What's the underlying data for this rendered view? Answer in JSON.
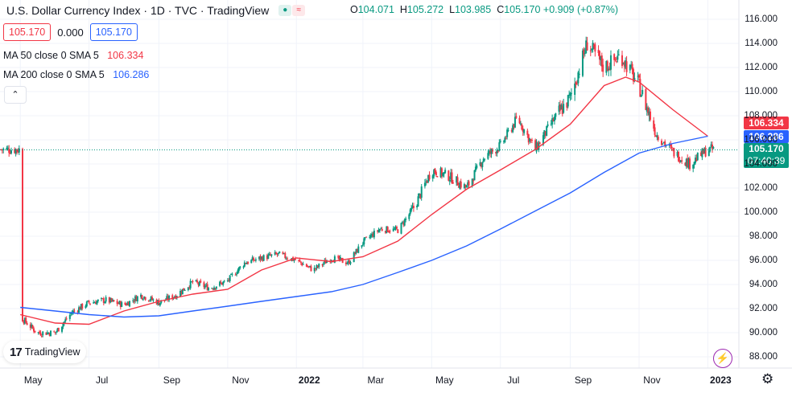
{
  "header": {
    "title": "U.S. Dollar Currency Index · 1D · TVC · TradingView",
    "ohlc": [
      {
        "label": "O",
        "value": "104.071"
      },
      {
        "label": "H",
        "value": "105.272"
      },
      {
        "label": "L",
        "value": "103.985"
      },
      {
        "label": "C",
        "value": "105.170"
      }
    ],
    "change": "+0.909 (+0.87%)",
    "last_price": "105.170",
    "volume": "0.000",
    "last_price_2": "105.170"
  },
  "indicators": {
    "ma50": {
      "label": "MA 50 close 0 SMA 5",
      "value": "106.334",
      "color": "#f23645"
    },
    "ma200": {
      "label": "MA 200 close 0 SMA 5",
      "value": "106.286",
      "color": "#2962ff"
    }
  },
  "price_tags": {
    "ma50": "106.334",
    "ma200": "106.286",
    "last": "105.170",
    "countdown": "07:40:39"
  },
  "logo_text": "TradingView",
  "collapse_glyph": "⌃",
  "colors": {
    "up": "#089981",
    "down": "#f23645",
    "ma50": "#f23645",
    "ma200": "#2962ff",
    "last_line": "#089981"
  },
  "chart_data": {
    "type": "candlestick",
    "title": "U.S. Dollar Currency Index",
    "ylim": [
      87,
      117
    ],
    "y_ticks": [
      "116.000",
      "114.000",
      "112.000",
      "110.000",
      "108.000",
      "106.000",
      "104.000",
      "102.000",
      "100.000",
      "98.000",
      "96.000",
      "94.000",
      "92.000",
      "90.000",
      "88.000"
    ],
    "x_ticks": [
      "May",
      "Jul",
      "Sep",
      "Nov",
      "2022",
      "Mar",
      "May",
      "Jul",
      "Sep",
      "Nov",
      "2023"
    ],
    "close_path": [
      [
        "2021-05-01",
        91.3
      ],
      [
        "2021-05-16",
        90.0
      ],
      [
        "2021-06-01",
        90.0
      ],
      [
        "2021-06-16",
        91.7
      ],
      [
        "2021-07-01",
        92.5
      ],
      [
        "2021-07-16",
        92.7
      ],
      [
        "2021-08-01",
        92.3
      ],
      [
        "2021-08-16",
        93.1
      ],
      [
        "2021-09-01",
        92.5
      ],
      [
        "2021-09-16",
        93.1
      ],
      [
        "2021-10-01",
        94.2
      ],
      [
        "2021-10-16",
        93.7
      ],
      [
        "2021-11-01",
        94.3
      ],
      [
        "2021-11-16",
        95.8
      ],
      [
        "2021-12-01",
        96.2
      ],
      [
        "2021-12-16",
        96.5
      ],
      [
        "2022-01-01",
        96.0
      ],
      [
        "2022-01-16",
        95.2
      ],
      [
        "2022-02-01",
        96.2
      ],
      [
        "2022-02-16",
        95.8
      ],
      [
        "2022-03-01",
        97.5
      ],
      [
        "2022-03-16",
        98.6
      ],
      [
        "2022-04-01",
        98.5
      ],
      [
        "2022-04-16",
        100.5
      ],
      [
        "2022-05-01",
        103.5
      ],
      [
        "2022-05-16",
        103.0
      ],
      [
        "2022-06-01",
        102.0
      ],
      [
        "2022-06-16",
        104.5
      ],
      [
        "2022-07-01",
        105.5
      ],
      [
        "2022-07-16",
        107.8
      ],
      [
        "2022-08-01",
        105.2
      ],
      [
        "2022-08-16",
        107.5
      ],
      [
        "2022-09-01",
        109.5
      ],
      [
        "2022-09-16",
        114.0
      ],
      [
        "2022-10-01",
        112.0
      ],
      [
        "2022-10-16",
        113.0
      ],
      [
        "2022-11-01",
        110.5
      ],
      [
        "2022-11-16",
        106.5
      ],
      [
        "2022-12-01",
        105.0
      ],
      [
        "2022-12-16",
        104.0
      ],
      [
        "2023-01-01",
        105.2
      ]
    ],
    "series": [
      {
        "name": "MA 50 close 0 SMA 5",
        "color": "#f23645",
        "points": [
          [
            "2021-05-01",
            91.5
          ],
          [
            "2021-06-01",
            90.8
          ],
          [
            "2021-07-01",
            90.7
          ],
          [
            "2021-08-01",
            91.8
          ],
          [
            "2021-09-01",
            92.6
          ],
          [
            "2021-10-01",
            93.2
          ],
          [
            "2021-11-01",
            93.6
          ],
          [
            "2021-12-01",
            95.2
          ],
          [
            "2022-01-01",
            96.2
          ],
          [
            "2022-02-01",
            95.9
          ],
          [
            "2022-03-01",
            96.3
          ],
          [
            "2022-04-01",
            97.6
          ],
          [
            "2022-05-01",
            99.8
          ],
          [
            "2022-06-01",
            101.9
          ],
          [
            "2022-07-01",
            103.5
          ],
          [
            "2022-08-01",
            105.2
          ],
          [
            "2022-09-01",
            107.3
          ],
          [
            "2022-10-01",
            110.5
          ],
          [
            "2022-10-20",
            111.2
          ],
          [
            "2022-11-01",
            110.8
          ],
          [
            "2022-12-01",
            108.5
          ],
          [
            "2023-01-01",
            106.3
          ]
        ]
      },
      {
        "name": "MA 200 close 0 SMA 5",
        "color": "#2962ff",
        "points": [
          [
            "2021-05-01",
            92.1
          ],
          [
            "2021-06-01",
            91.8
          ],
          [
            "2021-07-01",
            91.5
          ],
          [
            "2021-08-01",
            91.3
          ],
          [
            "2021-09-01",
            91.4
          ],
          [
            "2021-10-01",
            91.8
          ],
          [
            "2021-11-01",
            92.2
          ],
          [
            "2021-12-01",
            92.6
          ],
          [
            "2022-01-01",
            93.0
          ],
          [
            "2022-02-01",
            93.4
          ],
          [
            "2022-03-01",
            94.0
          ],
          [
            "2022-04-01",
            95.0
          ],
          [
            "2022-05-01",
            96.0
          ],
          [
            "2022-06-01",
            97.2
          ],
          [
            "2022-07-01",
            98.6
          ],
          [
            "2022-08-01",
            100.1
          ],
          [
            "2022-09-01",
            101.6
          ],
          [
            "2022-10-01",
            103.3
          ],
          [
            "2022-11-01",
            104.9
          ],
          [
            "2022-12-01",
            105.7
          ],
          [
            "2023-01-01",
            106.3
          ]
        ]
      }
    ],
    "last_price": 105.17
  }
}
